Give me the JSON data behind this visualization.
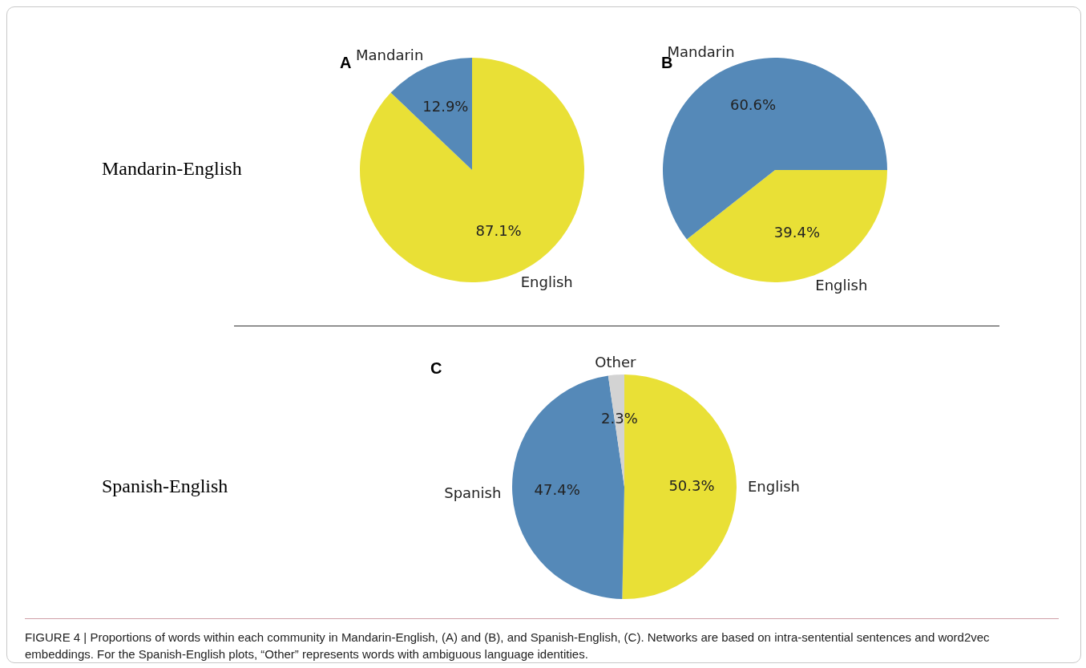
{
  "chart_data": [
    {
      "type": "pie",
      "title": "A",
      "categories": [
        "English",
        "Mandarin"
      ],
      "values": [
        87.1,
        12.9
      ],
      "value_labels": [
        "87.1%",
        "12.9%"
      ],
      "colors": [
        "#e9e036",
        "#5589b8"
      ],
      "legend": false,
      "annotations": [
        "Mandarin-English"
      ]
    },
    {
      "type": "pie",
      "title": "B",
      "categories": [
        "English",
        "Mandarin"
      ],
      "values": [
        39.4,
        60.6
      ],
      "value_labels": [
        "39.4%",
        "60.6%"
      ],
      "colors": [
        "#e9e036",
        "#5589b8"
      ],
      "legend": false
    },
    {
      "type": "pie",
      "title": "C",
      "categories": [
        "English",
        "Spanish",
        "Other"
      ],
      "values": [
        50.3,
        47.4,
        2.3
      ],
      "value_labels": [
        "50.3%",
        "47.4%",
        "2.3%"
      ],
      "colors": [
        "#e9e036",
        "#5589b8",
        "#d3d3d3"
      ],
      "legend": false,
      "annotations": [
        "Spanish-English",
        "FIGURE 4 | Proportions of words within each community in Mandarin-English, (A) and (B), and Spanish-English, (C). Networks are based on intra-sentential sentences and word2vec embeddings. For the Spanish-English plots, “Other” represents words with ambiguous language identities."
      ]
    }
  ]
}
